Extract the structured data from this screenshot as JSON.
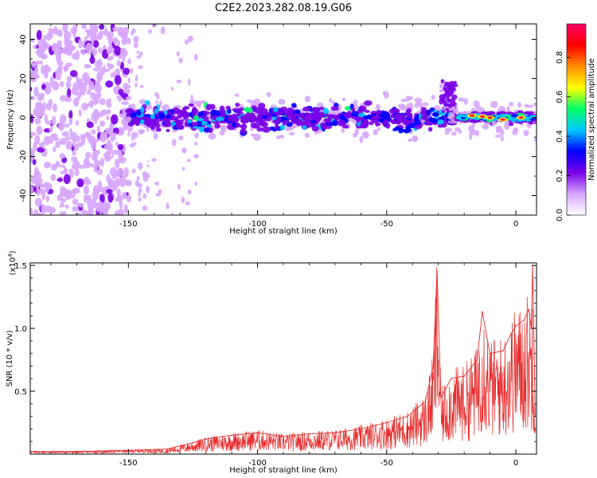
{
  "page": {
    "title": "C2E2.2023.282.08.19.G06"
  },
  "chart_data": [
    {
      "type": "heatmap",
      "xlabel": "Height of straight line (km)",
      "ylabel": "Frequency (Hz)",
      "xlim": [
        -188,
        8
      ],
      "ylim": [
        -50,
        48
      ],
      "xticks": [
        -150,
        -100,
        -50,
        0
      ],
      "yticks": [
        -40,
        -20,
        0,
        20,
        40
      ],
      "colorbar": {
        "label": "Normalized spectral amplitude",
        "range": [
          0,
          0.97
        ],
        "ticks": [
          "0.0",
          "0.2",
          "0.4",
          "0.6",
          "0.8"
        ],
        "tick_values": [
          0,
          0.2,
          0.4,
          0.6,
          0.8
        ],
        "colors": [
          "#ffffff",
          "#d7a6ff",
          "#7a00e6",
          "#0000ff",
          "#00c8ff",
          "#00ff66",
          "#ffff00",
          "#ff8c00",
          "#ff0000",
          "#ff0066"
        ]
      },
      "features": {
        "noise_region_x": [
          -188,
          -150
        ],
        "band_start_x": -150,
        "band_center_frequency": 0,
        "band_half_width_hz": 6,
        "tail_x": [
          -29,
          -23
        ],
        "tail_frequency": 19,
        "strongest_x": [
          -20,
          5
        ],
        "strongest_amplitude": 0.95
      }
    },
    {
      "type": "line",
      "xlabel": "Height of straight line (km)",
      "ylabel": "SNR (10 * v/v)",
      "y_multiplier": "(x10",
      "y_multiplier_exp": "4",
      "y_multiplier_close": ")",
      "xlim": [
        -188,
        8
      ],
      "ylim": [
        0,
        1.52
      ],
      "xticks": [
        -150,
        -100,
        -50,
        0
      ],
      "yticks": [
        "0.5",
        "1.0",
        "1.5"
      ],
      "ytick_values": [
        0.5,
        1.0,
        1.5
      ],
      "color": "#e82828",
      "series": [
        {
          "x": [
            -188,
            -170,
            -150,
            -135,
            -125,
            -120,
            -110,
            -100,
            -90,
            -80,
            -70,
            -60,
            -50,
            -42,
            -35,
            -32,
            -30.5,
            -29,
            -25,
            -20,
            -15,
            -13,
            -10,
            -5,
            -2,
            0,
            3,
            5,
            6,
            6.5,
            7.5
          ],
          "values": [
            0.02,
            0.02,
            0.03,
            0.04,
            0.09,
            0.12,
            0.15,
            0.17,
            0.14,
            0.16,
            0.17,
            0.2,
            0.25,
            0.3,
            0.42,
            0.7,
            1.45,
            0.45,
            0.6,
            0.62,
            0.75,
            1.13,
            0.8,
            0.82,
            0.95,
            1.02,
            1.06,
            1.15,
            1.0,
            1.5,
            0.3
          ]
        }
      ]
    }
  ]
}
